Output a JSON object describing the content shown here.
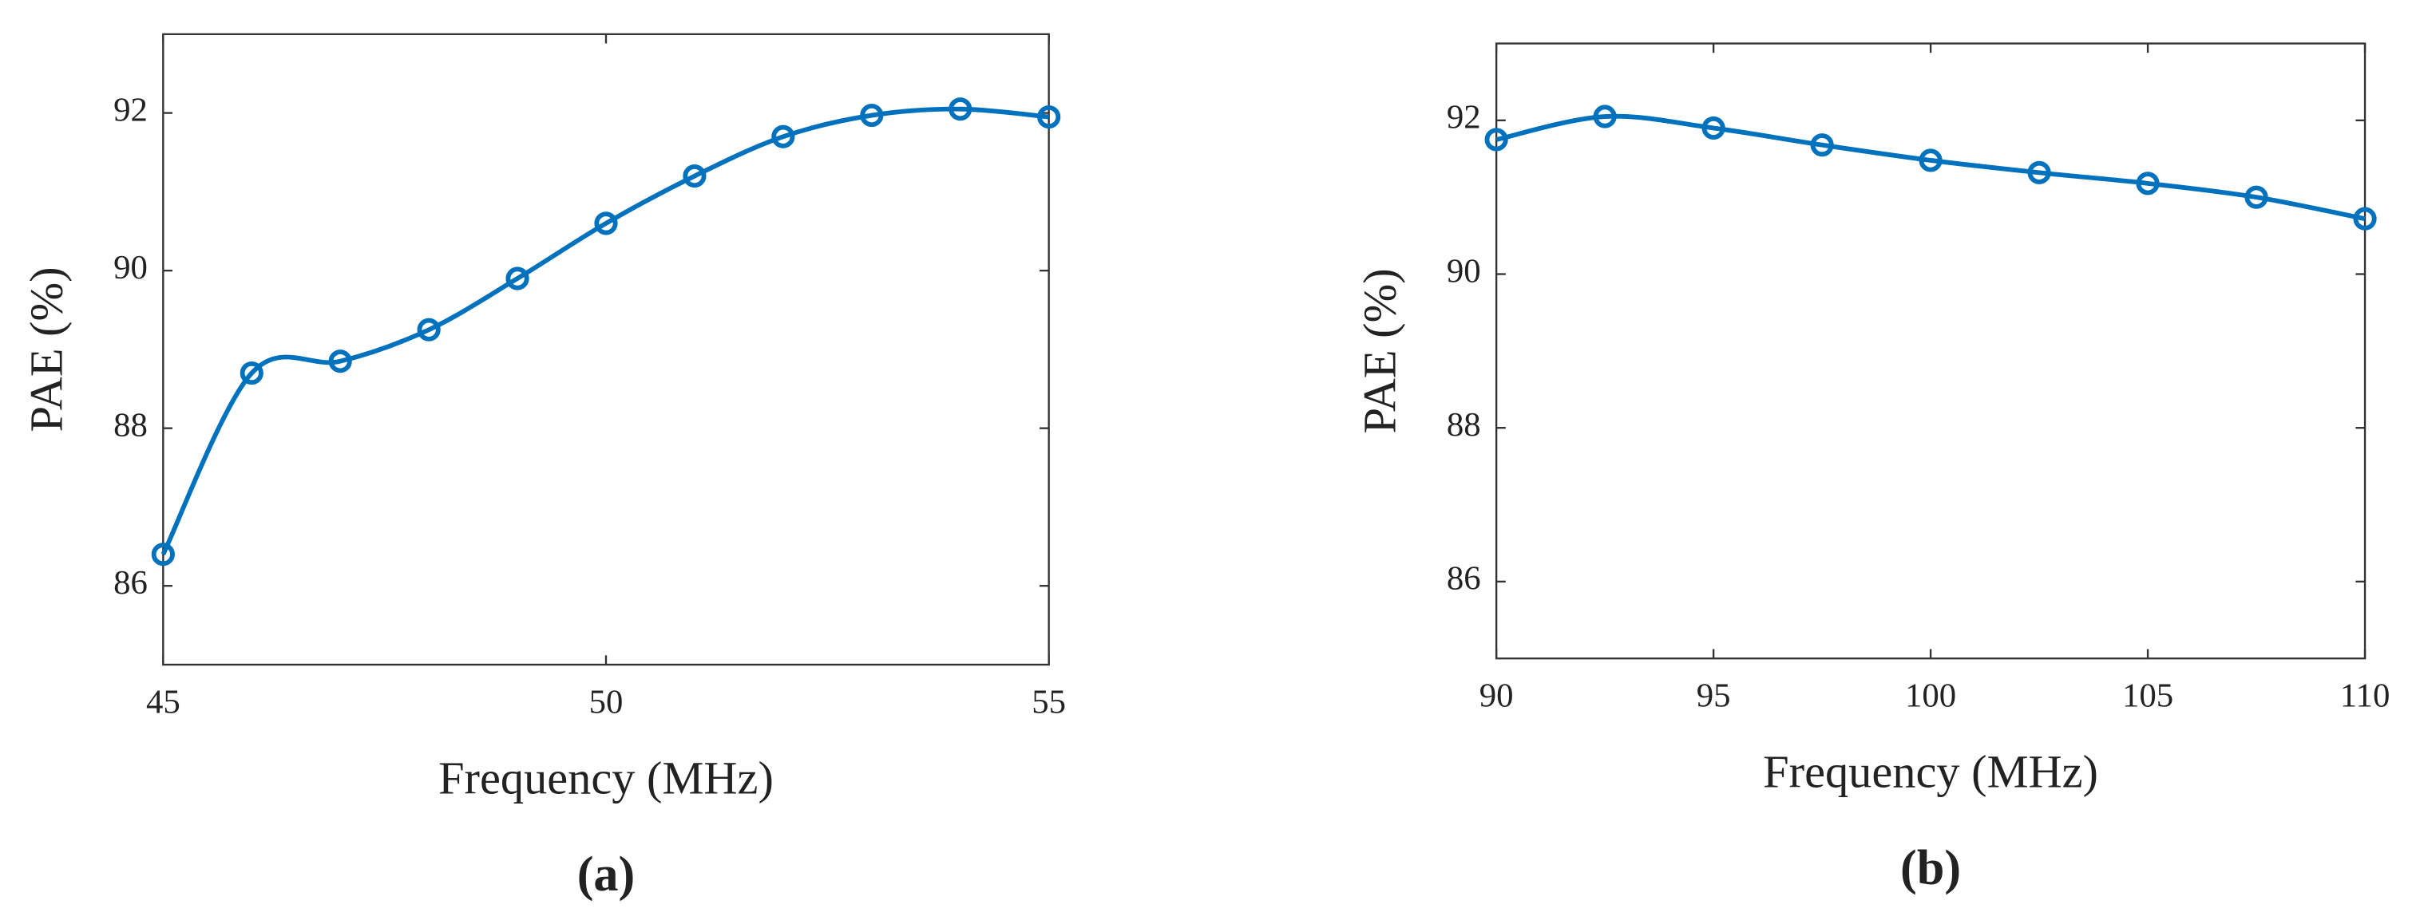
{
  "chart_data": [
    {
      "type": "line",
      "xlabel": "Frequency (MHz)",
      "ylabel": "PAE (%)",
      "caption": "(a)",
      "x": [
        45,
        46,
        47,
        48,
        49,
        50,
        51,
        52,
        53,
        54,
        55
      ],
      "series": [
        {
          "color": "#0072bd",
          "values": [
            86.4,
            88.7,
            88.85,
            89.25,
            89.9,
            90.6,
            91.2,
            91.7,
            91.97,
            92.05,
            91.95
          ]
        }
      ],
      "xlim": [
        45,
        55
      ],
      "xticks": [
        45,
        50,
        55
      ],
      "ylim": [
        85,
        93
      ],
      "yticks": [
        86,
        88,
        90,
        92
      ]
    },
    {
      "type": "line",
      "xlabel": "Frequency (MHz)",
      "ylabel": "PAE (%)",
      "caption": "(b)",
      "x": [
        90,
        92.5,
        95,
        97.5,
        100,
        102.5,
        105,
        107.5,
        110
      ],
      "series": [
        {
          "color": "#0072bd",
          "values": [
            91.75,
            92.05,
            91.9,
            91.68,
            91.48,
            91.32,
            91.18,
            91.0,
            90.72
          ]
        }
      ],
      "xlim": [
        90,
        110
      ],
      "xticks": [
        90,
        95,
        100,
        105,
        110
      ],
      "ylim": [
        85,
        93
      ],
      "yticks": [
        86,
        88,
        90,
        92
      ]
    }
  ]
}
